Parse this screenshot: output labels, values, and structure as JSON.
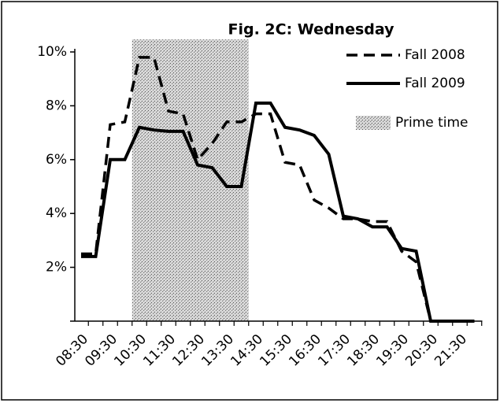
{
  "chart_data": {
    "type": "line",
    "title": "Fig. 2C: Wednesday",
    "categories": [
      "08:30",
      null,
      "09:30",
      null,
      "10:30",
      null,
      "11:30",
      null,
      "12:30",
      null,
      "13:30",
      null,
      "14:30",
      null,
      "15:30",
      null,
      "16:30",
      null,
      "17:30",
      null,
      "18:30",
      null,
      "19:30",
      null,
      "20:30",
      null,
      "21:30",
      null
    ],
    "series": [
      {
        "name": "Fall 2008",
        "color": "#000000",
        "dash": true,
        "values": [
          2.5,
          2.5,
          7.3,
          7.4,
          9.8,
          9.8,
          7.8,
          7.7,
          6.0,
          6.6,
          7.4,
          7.4,
          7.7,
          7.7,
          5.9,
          5.8,
          4.5,
          4.2,
          3.8,
          3.8,
          3.7,
          3.7,
          2.6,
          2.2,
          0,
          0,
          0,
          0
        ]
      },
      {
        "name": "Fall 2009",
        "color": "#000000",
        "dash": false,
        "values": [
          2.4,
          2.4,
          6.0,
          6.0,
          7.2,
          7.1,
          7.05,
          7.05,
          5.8,
          5.7,
          5.0,
          5.0,
          8.1,
          8.1,
          7.2,
          7.1,
          6.9,
          6.2,
          3.9,
          3.8,
          3.5,
          3.5,
          2.7,
          2.6,
          0,
          0,
          0,
          0
        ]
      }
    ],
    "shaded_span": {
      "name": "Prime time",
      "from_index": 4,
      "to_index": 11
    },
    "ylim": [
      0,
      10
    ],
    "yticks": [
      0,
      {
        "value": 2,
        "label": "2%"
      },
      {
        "value": 4,
        "label": "4%"
      },
      {
        "value": 6,
        "label": "6%"
      },
      {
        "value": 8,
        "label": "8%"
      },
      {
        "value": 10,
        "label": "10%"
      }
    ]
  }
}
